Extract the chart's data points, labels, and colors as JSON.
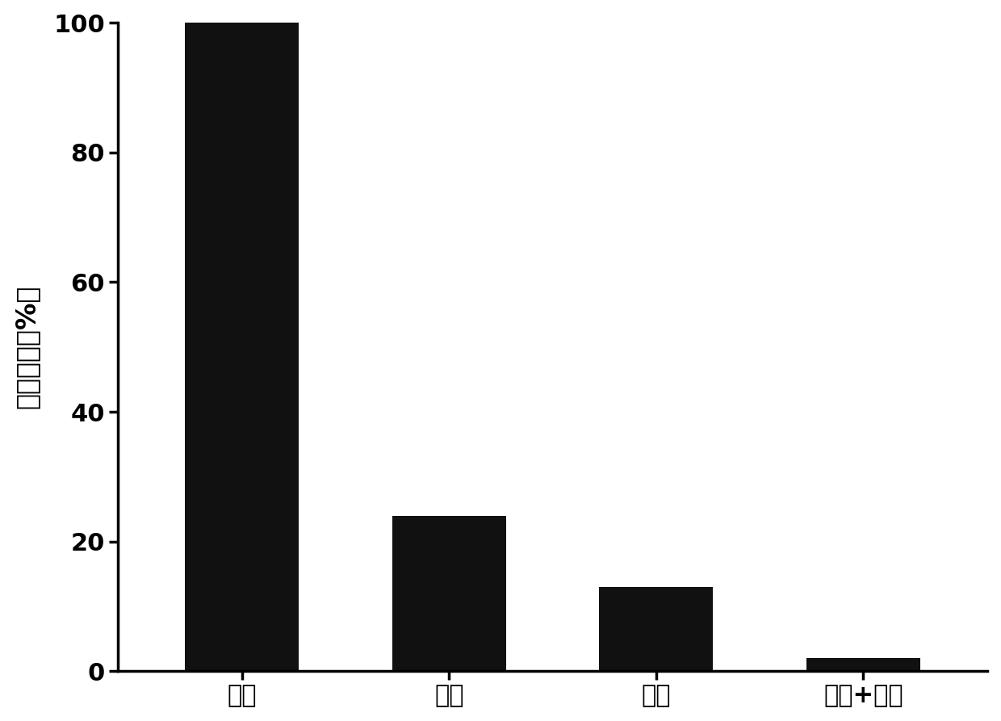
{
  "categories": [
    "原水",
    "臭氧",
    "紫外",
    "紫外+臭氧"
  ],
  "values": [
    100,
    24,
    13,
    2
  ],
  "bar_color": "#111111",
  "ylabel": "细菌浓度（%）",
  "ylim": [
    0,
    100
  ],
  "yticks": [
    0,
    20,
    40,
    60,
    80,
    100
  ],
  "background_color": "#ffffff",
  "bar_width": 0.55,
  "ylabel_fontsize": 24,
  "tick_fontsize": 22,
  "spine_linewidth": 2.5
}
